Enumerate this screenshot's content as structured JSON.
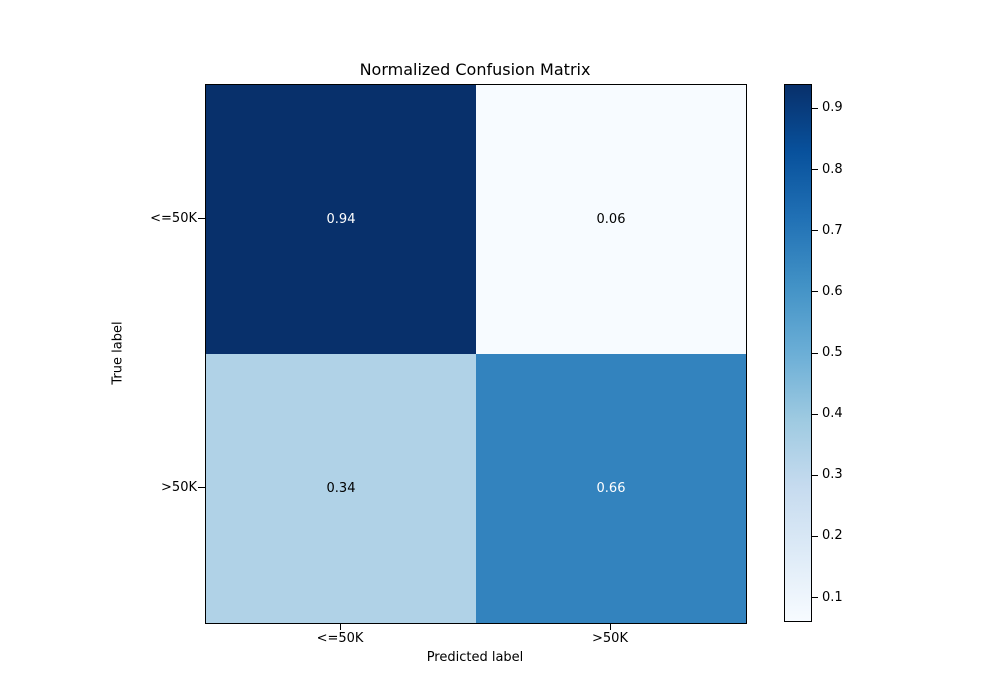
{
  "chart_data": {
    "type": "heatmap",
    "title": "Normalized Confusion Matrix",
    "xlabel": "Predicted label",
    "ylabel": "True label",
    "x_categories": [
      "<=50K",
      ">50K"
    ],
    "y_categories": [
      "<=50K",
      ">50K"
    ],
    "matrix": [
      [
        0.94,
        0.06
      ],
      [
        0.34,
        0.66
      ]
    ],
    "cell_labels": [
      [
        "0.94",
        "0.06"
      ],
      [
        "0.34",
        "0.66"
      ]
    ],
    "cell_colors": [
      [
        "#08306b",
        "#f7fbff"
      ],
      [
        "#b0d2e7",
        "#3383be"
      ]
    ],
    "cell_text_colors": [
      [
        "#ffffff",
        "#000000"
      ],
      [
        "#000000",
        "#ffffff"
      ]
    ],
    "colormap": "Blues",
    "vmin": 0.06,
    "vmax": 0.94,
    "colorbar_ticks": [
      0.9,
      0.8,
      0.7,
      0.6,
      0.5,
      0.4,
      0.3,
      0.2,
      0.1
    ],
    "colorbar_tick_labels": [
      "0.9",
      "0.8",
      "0.7",
      "0.6",
      "0.5",
      "0.4",
      "0.3",
      "0.2",
      "0.1"
    ],
    "colorbar_gradient_top_to_bottom": [
      "#08306b",
      "#08519c",
      "#2171b5",
      "#4292c6",
      "#6baed6",
      "#9ecae1",
      "#c6dbef",
      "#deebf7",
      "#f7fbff"
    ],
    "grid": false,
    "legend": "colorbar-right",
    "background_color": "#ffffff",
    "spine_color": "#000000"
  }
}
